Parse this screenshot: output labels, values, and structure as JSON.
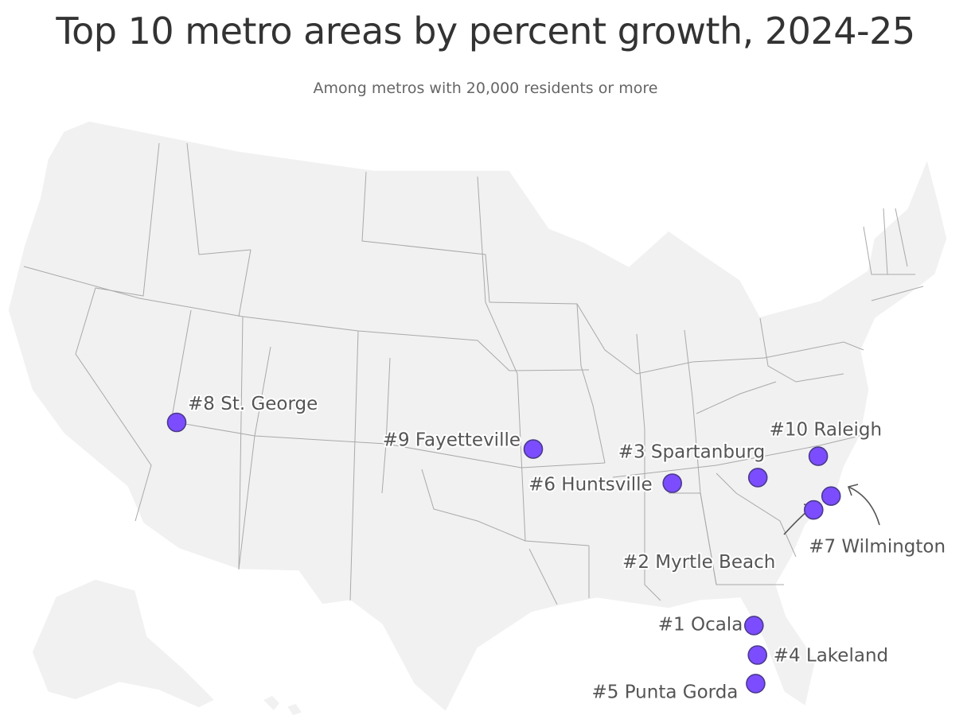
{
  "title": "Top 10 metro areas by percent growth, 2024-25",
  "subtitle": "Among metros with 20,000 residents or more",
  "colors": {
    "dot_fill": "#7c4dff",
    "dot_stroke": "#4a3a8c",
    "land": "#f1f1f1",
    "state_border": "#a9a9a9",
    "label": "#555555"
  },
  "metros": [
    {
      "rank_label": "#1 Ocala",
      "rank": 1,
      "lat": 29.19,
      "lon": -82.14
    },
    {
      "rank_label": "#2 Myrtle Beach",
      "rank": 2,
      "lat": 33.69,
      "lon": -78.89
    },
    {
      "rank_label": "#3 Spartanburg",
      "rank": 3,
      "lat": 34.95,
      "lon": -81.93
    },
    {
      "rank_label": "#4 Lakeland",
      "rank": 4,
      "lat": 28.04,
      "lon": -81.95
    },
    {
      "rank_label": "#5 Punta Gorda",
      "rank": 5,
      "lat": 26.93,
      "lon": -82.05
    },
    {
      "rank_label": "#6 Huntsville",
      "rank": 6,
      "lat": 34.73,
      "lon": -86.59
    },
    {
      "rank_label": "#7 Wilmington",
      "rank": 7,
      "lat": 34.23,
      "lon": -77.94
    },
    {
      "rank_label": "#8 St. George",
      "rank": 8,
      "lat": 37.1,
      "lon": -113.58
    },
    {
      "rank_label": "#9 Fayetteville",
      "rank": 9,
      "lat": 36.06,
      "lon": -94.16
    },
    {
      "rank_label": "#10 Raleigh",
      "rank": 10,
      "lat": 35.78,
      "lon": -78.64
    }
  ]
}
